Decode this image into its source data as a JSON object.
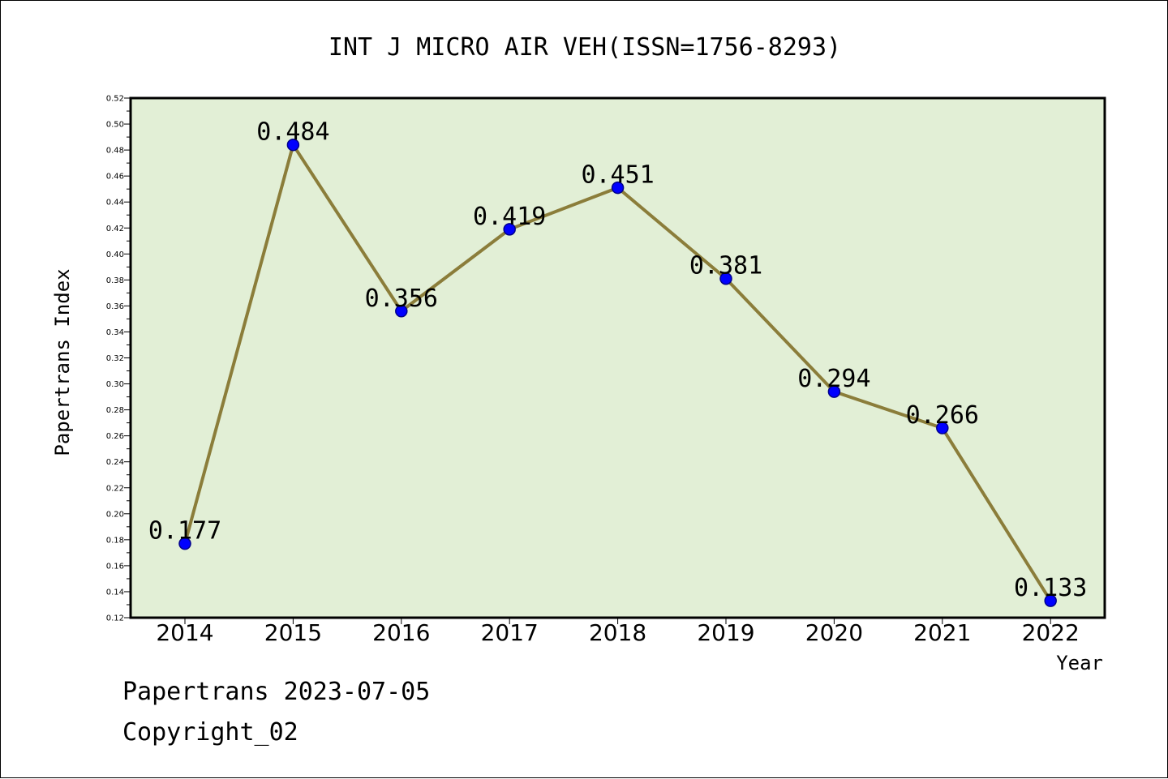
{
  "colors": {
    "plot_background": "#e2efd6",
    "line": "#8b7d3a",
    "marker": "#0000ff",
    "marker_edge": "#00008b",
    "axis": "#000000"
  },
  "footer": {
    "line1": "Papertrans 2023-07-05",
    "line2": "Copyright_02"
  },
  "chart_data": {
    "type": "line",
    "title": "INT J MICRO AIR VEH(ISSN=1756-8293)",
    "xlabel": "Year",
    "ylabel": "Papertrans Index",
    "categories": [
      "2014",
      "2015",
      "2016",
      "2017",
      "2018",
      "2019",
      "2020",
      "2021",
      "2022"
    ],
    "values": [
      0.177,
      0.484,
      0.356,
      0.419,
      0.451,
      0.381,
      0.294,
      0.266,
      0.133
    ],
    "data_labels": [
      "0.177",
      "0.484",
      "0.356",
      "0.419",
      "0.451",
      "0.381",
      "0.294",
      "0.266",
      "0.133"
    ],
    "ylim": [
      0.12,
      0.52
    ],
    "yticks": [
      "0.12",
      "0.14",
      "0.16",
      "0.18",
      "0.20",
      "0.22",
      "0.24",
      "0.26",
      "0.28",
      "0.30",
      "0.32",
      "0.34",
      "0.36",
      "0.38",
      "0.40",
      "0.42",
      "0.44",
      "0.46",
      "0.48",
      "0.50",
      "0.52"
    ],
    "grid": false,
    "legend": "none"
  }
}
